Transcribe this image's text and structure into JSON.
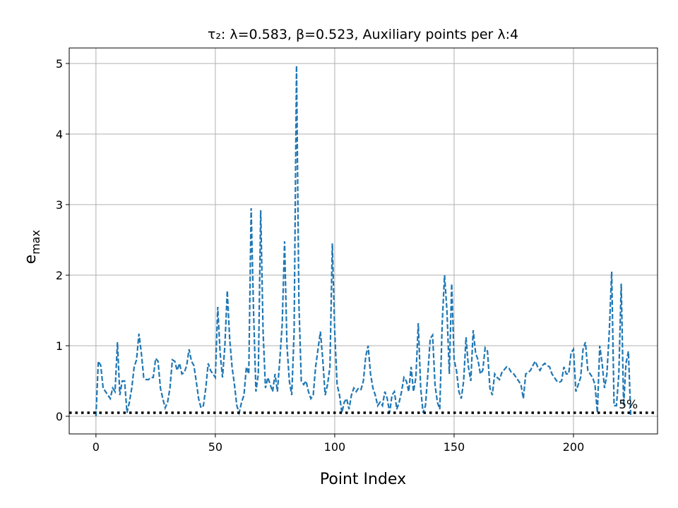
{
  "chart_data": {
    "type": "line",
    "title": "τ₂: λ=0.583, β=0.523, Auxiliary points per λ:4",
    "xlabel": "Point Index",
    "ylabel": "e",
    "ylabel_sub": "max",
    "x": [
      0,
      1,
      2,
      3,
      4,
      5,
      6,
      7,
      8,
      9,
      10,
      11,
      12,
      13,
      14,
      15,
      16,
      17,
      18,
      19,
      20,
      21,
      22,
      23,
      24,
      25,
      26,
      27,
      28,
      29,
      30,
      31,
      32,
      33,
      34,
      35,
      36,
      37,
      38,
      39,
      40,
      41,
      42,
      43,
      44,
      45,
      46,
      47,
      48,
      49,
      50,
      51,
      52,
      53,
      54,
      55,
      56,
      57,
      58,
      59,
      60,
      61,
      62,
      63,
      64,
      65,
      66,
      67,
      68,
      69,
      70,
      71,
      72,
      73,
      74,
      75,
      76,
      77,
      78,
      79,
      80,
      81,
      82,
      83,
      84,
      85,
      86,
      87,
      88,
      89,
      90,
      91,
      92,
      93,
      94,
      95,
      96,
      97,
      98,
      99,
      100,
      101,
      102,
      103,
      104,
      105,
      106,
      107,
      108,
      109,
      110,
      111,
      112,
      113,
      114,
      115,
      116,
      117,
      118,
      119,
      120,
      121,
      122,
      123,
      124,
      125,
      126,
      127,
      128,
      129,
      130,
      131,
      132,
      133,
      134,
      135,
      136,
      137,
      138,
      139,
      140,
      141,
      142,
      143,
      144,
      145,
      146,
      147,
      148,
      149,
      150,
      151,
      152,
      153,
      154,
      155,
      156,
      157,
      158,
      159,
      160,
      161,
      162,
      163,
      164,
      165,
      166,
      167,
      168,
      169,
      170,
      171,
      172,
      173,
      174,
      175,
      176,
      177,
      178,
      179,
      180,
      181,
      182,
      183,
      184,
      185,
      186,
      187,
      188,
      189,
      190,
      191,
      192,
      193,
      194,
      195,
      196,
      197,
      198,
      199,
      200,
      201,
      202,
      203,
      204,
      205,
      206,
      207,
      208,
      209,
      210,
      211,
      212,
      213,
      214,
      215,
      216,
      217,
      218,
      219,
      220,
      221,
      222,
      223,
      224
    ],
    "series": [
      {
        "color": "#1f77b4",
        "values": [
          0,
          0.78,
          0.72,
          0.4,
          0.35,
          0.3,
          0.25,
          0.4,
          0.35,
          1.05,
          0.3,
          0.5,
          0.5,
          0.05,
          0.2,
          0.4,
          0.7,
          0.8,
          1.17,
          0.9,
          0.55,
          0.52,
          0.52,
          0.55,
          0.55,
          0.82,
          0.78,
          0.4,
          0.25,
          0.12,
          0.2,
          0.4,
          0.8,
          0.78,
          0.65,
          0.75,
          0.6,
          0.62,
          0.72,
          0.95,
          0.78,
          0.72,
          0.5,
          0.25,
          0.12,
          0.15,
          0.4,
          0.75,
          0.65,
          0.6,
          0.55,
          1.55,
          0.9,
          0.55,
          1.0,
          1.78,
          1.1,
          0.7,
          0.45,
          0.15,
          0.05,
          0.2,
          0.3,
          0.7,
          0.6,
          2.95,
          1.5,
          0.35,
          0.6,
          2.92,
          1.2,
          0.4,
          0.55,
          0.45,
          0.35,
          0.6,
          0.35,
          0.8,
          1.3,
          2.48,
          1.0,
          0.5,
          0.3,
          1.2,
          4.97,
          1.6,
          0.5,
          0.45,
          0.5,
          0.35,
          0.25,
          0.3,
          0.7,
          0.95,
          1.2,
          0.8,
          0.3,
          0.45,
          0.7,
          2.45,
          1.2,
          0.45,
          0.3,
          0.05,
          0.2,
          0.25,
          0.1,
          0.3,
          0.4,
          0.35,
          0.4,
          0.38,
          0.5,
          0.85,
          1.0,
          0.6,
          0.4,
          0.3,
          0.15,
          0.2,
          0.15,
          0.35,
          0.25,
          0.05,
          0.3,
          0.35,
          0.1,
          0.2,
          0.35,
          0.55,
          0.5,
          0.35,
          0.7,
          0.35,
          0.55,
          1.32,
          0.4,
          0.05,
          0.15,
          0.6,
          1.1,
          1.15,
          0.45,
          0.2,
          0.1,
          1.3,
          2.0,
          1.5,
          0.6,
          1.88,
          0.8,
          0.65,
          0.35,
          0.25,
          0.5,
          1.12,
          0.7,
          0.5,
          1.22,
          0.9,
          0.8,
          0.6,
          0.65,
          0.97,
          0.92,
          0.4,
          0.3,
          0.6,
          0.55,
          0.52,
          0.62,
          0.66,
          0.7,
          0.68,
          0.62,
          0.6,
          0.55,
          0.5,
          0.45,
          0.25,
          0.6,
          0.62,
          0.65,
          0.72,
          0.78,
          0.7,
          0.65,
          0.72,
          0.75,
          0.72,
          0.7,
          0.6,
          0.55,
          0.5,
          0.48,
          0.5,
          0.7,
          0.6,
          0.6,
          0.9,
          0.95,
          0.35,
          0.45,
          0.55,
          0.95,
          1.05,
          0.65,
          0.6,
          0.55,
          0.45,
          0.05,
          1.0,
          0.75,
          0.4,
          0.6,
          1.2,
          2.05,
          0.15,
          0.15,
          0.6,
          1.88,
          0.15,
          0.75,
          0.92,
          0.0
        ]
      }
    ],
    "threshold": 0.05,
    "threshold_label": "5%",
    "threshold_label_x": 219,
    "xlim": [
      -11.2,
      235.2
    ],
    "ylim": [
      -0.25,
      5.22
    ],
    "xticks": [
      0,
      50,
      100,
      150,
      200
    ],
    "yticks": [
      0,
      1,
      2,
      3,
      4,
      5
    ],
    "grid": true
  }
}
